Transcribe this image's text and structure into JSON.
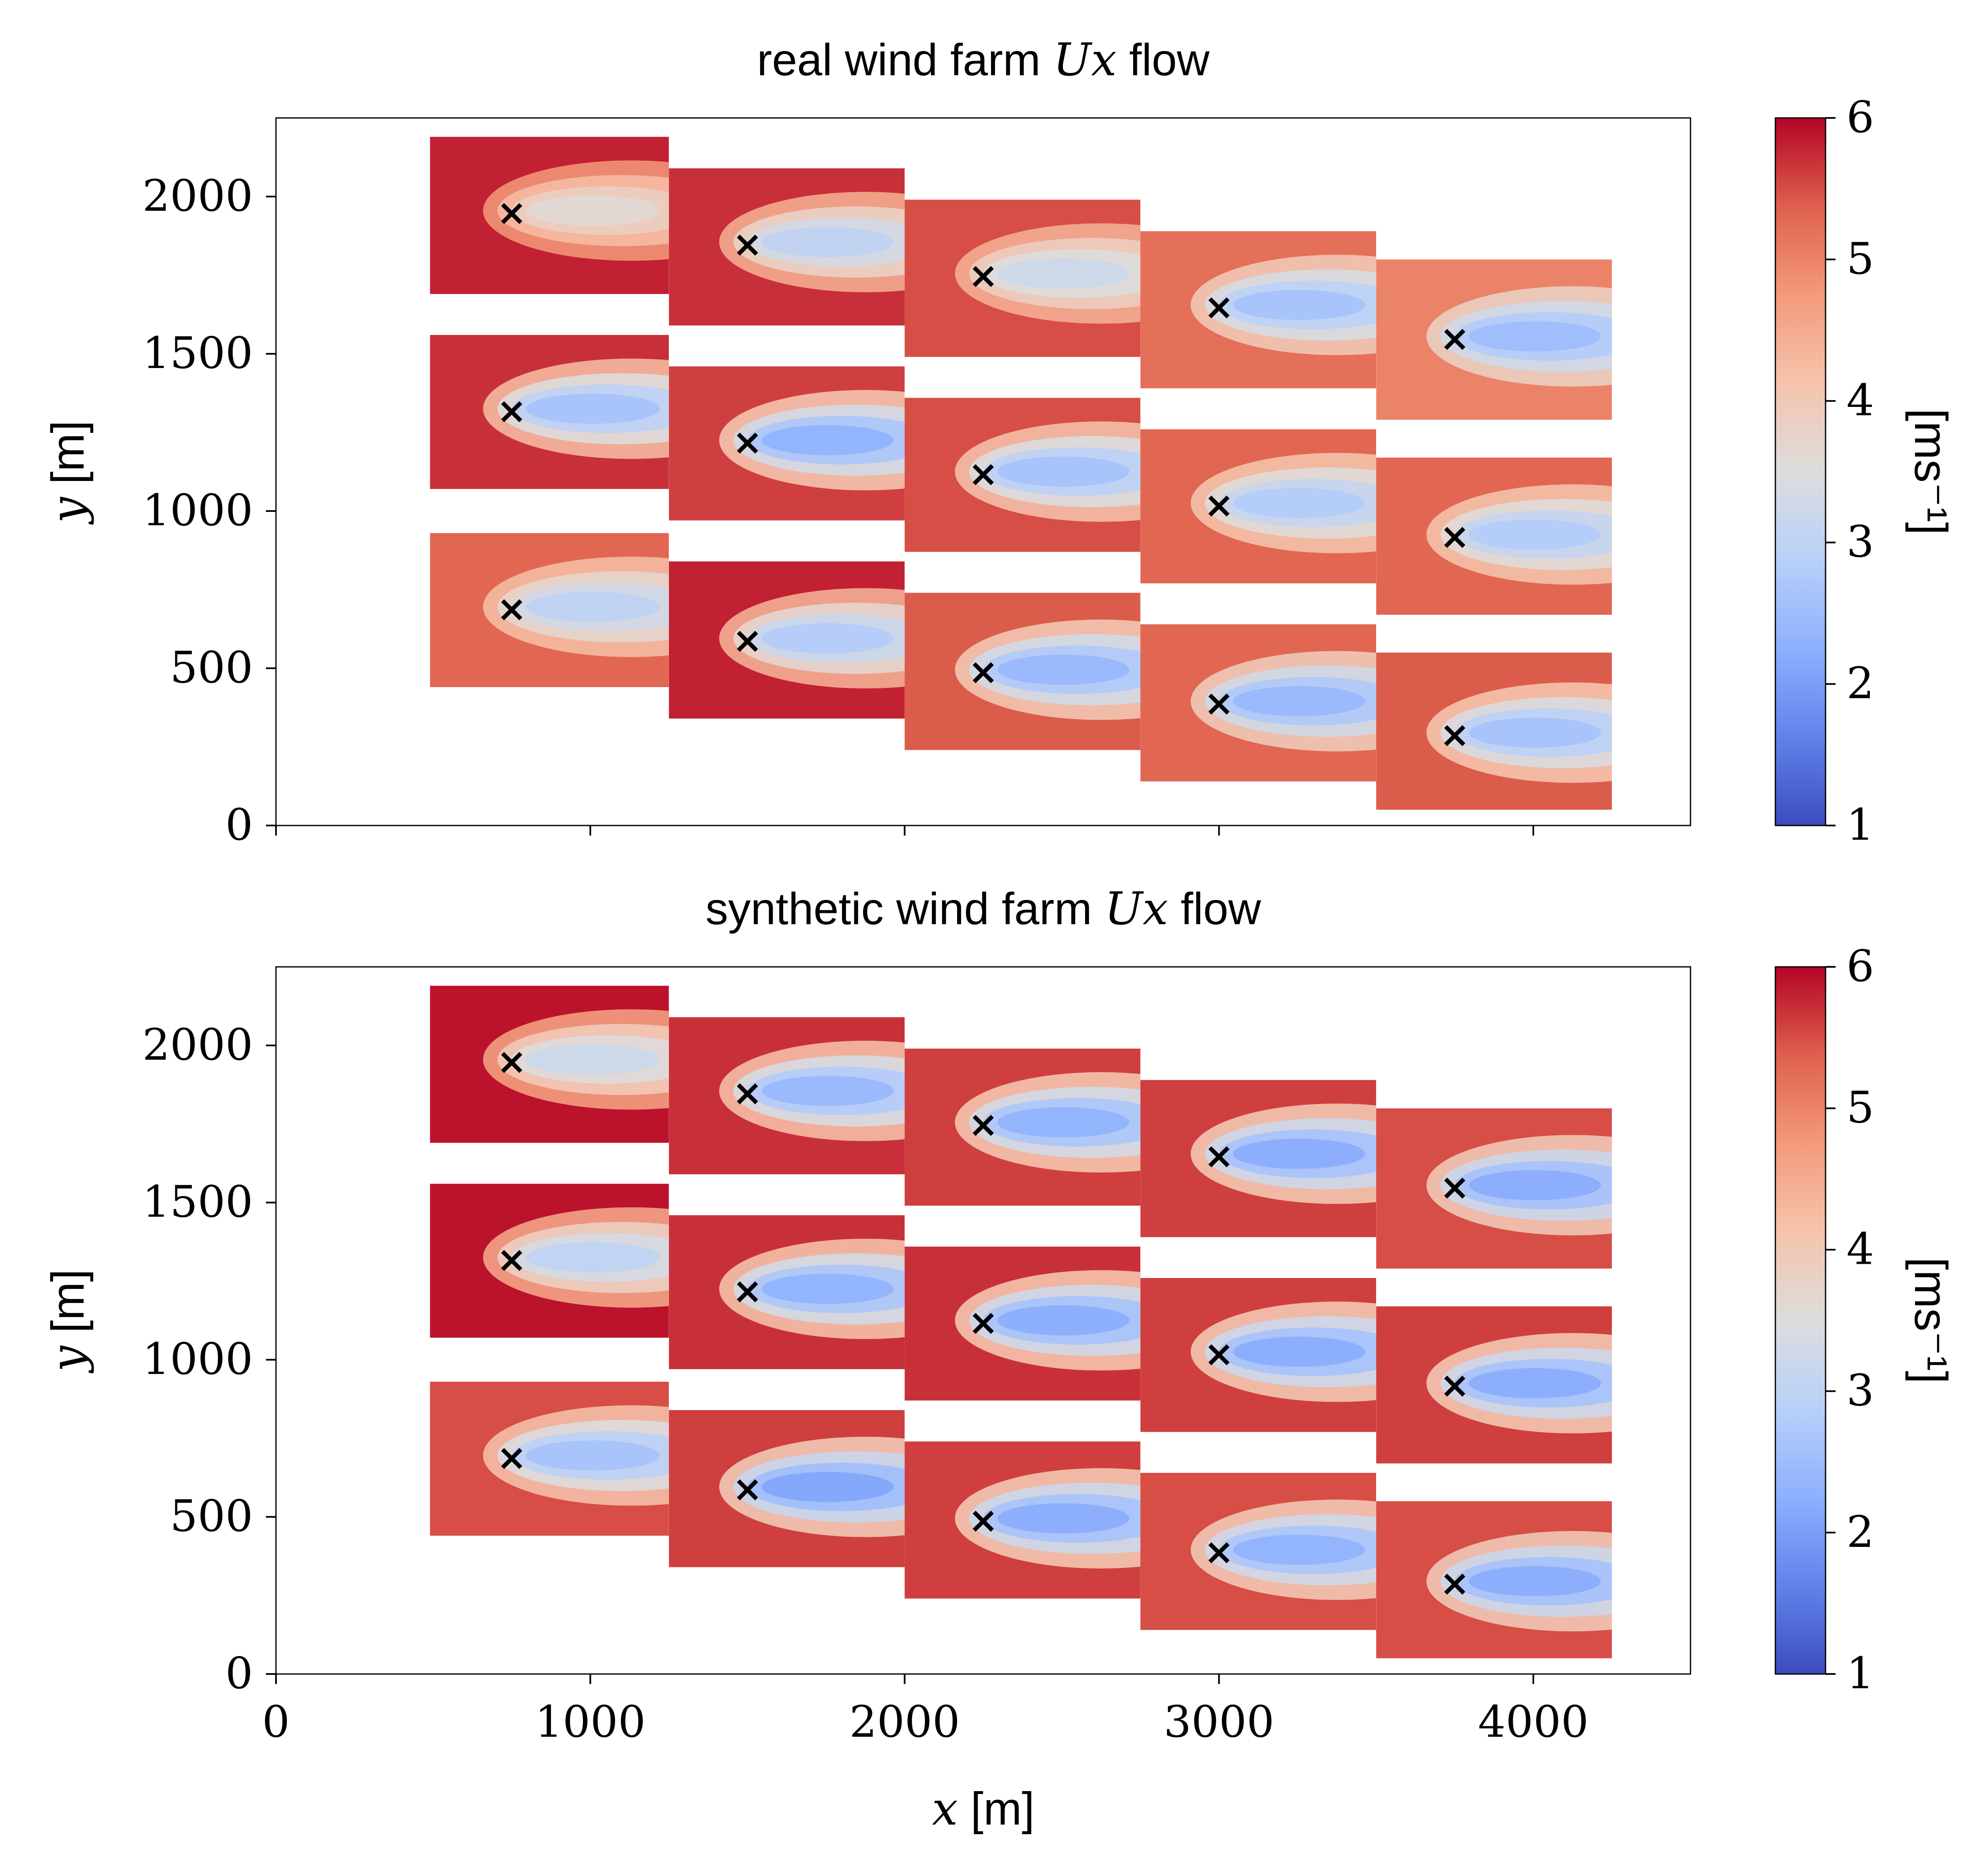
{
  "chart_data": [
    {
      "type": "heatmap",
      "title": "real wind farm Ux flow",
      "title_parts": {
        "before": "real wind farm ",
        "math": "Ux",
        "after": " flow"
      },
      "xlabel": "x [m]",
      "xlabel_parts": {
        "math": "x",
        "after": " [m]"
      },
      "ylabel": "y [m]",
      "ylabel_parts": {
        "math": "y",
        "after": " [m]"
      },
      "xlim": [
        0,
        4500
      ],
      "ylim": [
        0,
        2250
      ],
      "xticks": [
        "0",
        "1000",
        "2000",
        "3000",
        "4000"
      ],
      "xticklabels_visible": false,
      "yticks": [
        "0",
        "500",
        "1000",
        "1500",
        "2000"
      ],
      "colorbar": {
        "label": "[ms⁻¹]",
        "range": [
          1,
          6
        ],
        "ticks": [
          "1",
          "2",
          "3",
          "4",
          "5",
          "6"
        ],
        "colormap": "coolwarm"
      },
      "turbine_marker": "×",
      "turbines": [
        [
          750,
          1950
        ],
        [
          1500,
          1850
        ],
        [
          2250,
          1750
        ],
        [
          3000,
          1650
        ],
        [
          3750,
          1550
        ],
        [
          750,
          1320
        ],
        [
          1500,
          1220
        ],
        [
          2250,
          1120
        ],
        [
          3000,
          1020
        ],
        [
          3750,
          920
        ],
        [
          750,
          690
        ],
        [
          1500,
          590
        ],
        [
          2250,
          490
        ],
        [
          3000,
          390
        ],
        [
          3750,
          290
        ]
      ],
      "tiles": [
        {
          "x": [
            490,
            1250
          ],
          "y": [
            1690,
            2190
          ],
          "background_ms": 5.8
        },
        {
          "x": [
            1250,
            2000
          ],
          "y": [
            1590,
            2090
          ],
          "background_ms": 5.7
        },
        {
          "x": [
            2000,
            2750
          ],
          "y": [
            1490,
            1990
          ],
          "background_ms": 5.5
        },
        {
          "x": [
            2750,
            3500
          ],
          "y": [
            1390,
            1890
          ],
          "background_ms": 5.2
        },
        {
          "x": [
            3500,
            4250
          ],
          "y": [
            1290,
            1800
          ],
          "background_ms": 5.0
        },
        {
          "x": [
            490,
            1250
          ],
          "y": [
            1070,
            1560
          ],
          "background_ms": 5.7
        },
        {
          "x": [
            1250,
            2000
          ],
          "y": [
            970,
            1460
          ],
          "background_ms": 5.6
        },
        {
          "x": [
            2000,
            2750
          ],
          "y": [
            870,
            1360
          ],
          "background_ms": 5.5
        },
        {
          "x": [
            2750,
            3500
          ],
          "y": [
            770,
            1260
          ],
          "background_ms": 5.3
        },
        {
          "x": [
            3500,
            4250
          ],
          "y": [
            670,
            1170
          ],
          "background_ms": 5.3
        },
        {
          "x": [
            490,
            1250
          ],
          "y": [
            440,
            930
          ],
          "background_ms": 5.3
        },
        {
          "x": [
            1250,
            2000
          ],
          "y": [
            340,
            840
          ],
          "background_ms": 5.8
        },
        {
          "x": [
            2000,
            2750
          ],
          "y": [
            240,
            740
          ],
          "background_ms": 5.4
        },
        {
          "x": [
            2750,
            3500
          ],
          "y": [
            140,
            640
          ],
          "background_ms": 5.3
        },
        {
          "x": [
            3500,
            4250
          ],
          "y": [
            50,
            550
          ],
          "background_ms": 5.4
        }
      ],
      "wake_min_ms": [
        3.6,
        3.0,
        3.2,
        2.6,
        2.5,
        2.6,
        2.3,
        2.6,
        2.8,
        2.8,
        3.0,
        2.8,
        2.4,
        2.4,
        2.6
      ]
    },
    {
      "type": "heatmap",
      "title": "synthetic wind farm Ux flow",
      "title_parts": {
        "before": "synthetic wind farm ",
        "math": "Ux",
        "after": " flow"
      },
      "xlabel": "x [m]",
      "xlabel_parts": {
        "math": "x",
        "after": " [m]"
      },
      "ylabel": "y [m]",
      "ylabel_parts": {
        "math": "y",
        "after": " [m]"
      },
      "xlim": [
        0,
        4500
      ],
      "ylim": [
        0,
        2250
      ],
      "xticks": [
        "0",
        "1000",
        "2000",
        "3000",
        "4000"
      ],
      "xticklabels_visible": true,
      "yticks": [
        "0",
        "500",
        "1000",
        "1500",
        "2000"
      ],
      "colorbar": {
        "label": "[ms⁻¹]",
        "range": [
          1,
          6
        ],
        "ticks": [
          "1",
          "2",
          "3",
          "4",
          "5",
          "6"
        ],
        "colormap": "coolwarm"
      },
      "turbine_marker": "×",
      "turbines": [
        [
          750,
          1950
        ],
        [
          1500,
          1850
        ],
        [
          2250,
          1750
        ],
        [
          3000,
          1650
        ],
        [
          3750,
          1550
        ],
        [
          750,
          1320
        ],
        [
          1500,
          1220
        ],
        [
          2250,
          1120
        ],
        [
          3000,
          1020
        ],
        [
          3750,
          920
        ],
        [
          750,
          690
        ],
        [
          1500,
          590
        ],
        [
          2250,
          490
        ],
        [
          3000,
          390
        ],
        [
          3750,
          290
        ]
      ],
      "tiles": [
        {
          "x": [
            490,
            1250
          ],
          "y": [
            1690,
            2190
          ],
          "background_ms": 5.9
        },
        {
          "x": [
            1250,
            2000
          ],
          "y": [
            1590,
            2090
          ],
          "background_ms": 5.7
        },
        {
          "x": [
            2000,
            2750
          ],
          "y": [
            1490,
            1990
          ],
          "background_ms": 5.6
        },
        {
          "x": [
            2750,
            3500
          ],
          "y": [
            1390,
            1890
          ],
          "background_ms": 5.6
        },
        {
          "x": [
            3500,
            4250
          ],
          "y": [
            1290,
            1800
          ],
          "background_ms": 5.5
        },
        {
          "x": [
            490,
            1250
          ],
          "y": [
            1070,
            1560
          ],
          "background_ms": 5.9
        },
        {
          "x": [
            1250,
            2000
          ],
          "y": [
            970,
            1460
          ],
          "background_ms": 5.7
        },
        {
          "x": [
            2000,
            2750
          ],
          "y": [
            870,
            1360
          ],
          "background_ms": 5.7
        },
        {
          "x": [
            2750,
            3500
          ],
          "y": [
            770,
            1260
          ],
          "background_ms": 5.6
        },
        {
          "x": [
            3500,
            4250
          ],
          "y": [
            670,
            1170
          ],
          "background_ms": 5.6
        },
        {
          "x": [
            490,
            1250
          ],
          "y": [
            440,
            930
          ],
          "background_ms": 5.5
        },
        {
          "x": [
            1250,
            2000
          ],
          "y": [
            340,
            840
          ],
          "background_ms": 5.6
        },
        {
          "x": [
            2000,
            2750
          ],
          "y": [
            240,
            740
          ],
          "background_ms": 5.6
        },
        {
          "x": [
            2750,
            3500
          ],
          "y": [
            140,
            640
          ],
          "background_ms": 5.5
        },
        {
          "x": [
            3500,
            4250
          ],
          "y": [
            50,
            550
          ],
          "background_ms": 5.5
        }
      ],
      "wake_min_ms": [
        3.2,
        2.4,
        2.3,
        2.2,
        2.2,
        3.0,
        2.3,
        2.2,
        2.2,
        2.2,
        2.6,
        2.1,
        2.2,
        2.3,
        2.2
      ]
    }
  ]
}
